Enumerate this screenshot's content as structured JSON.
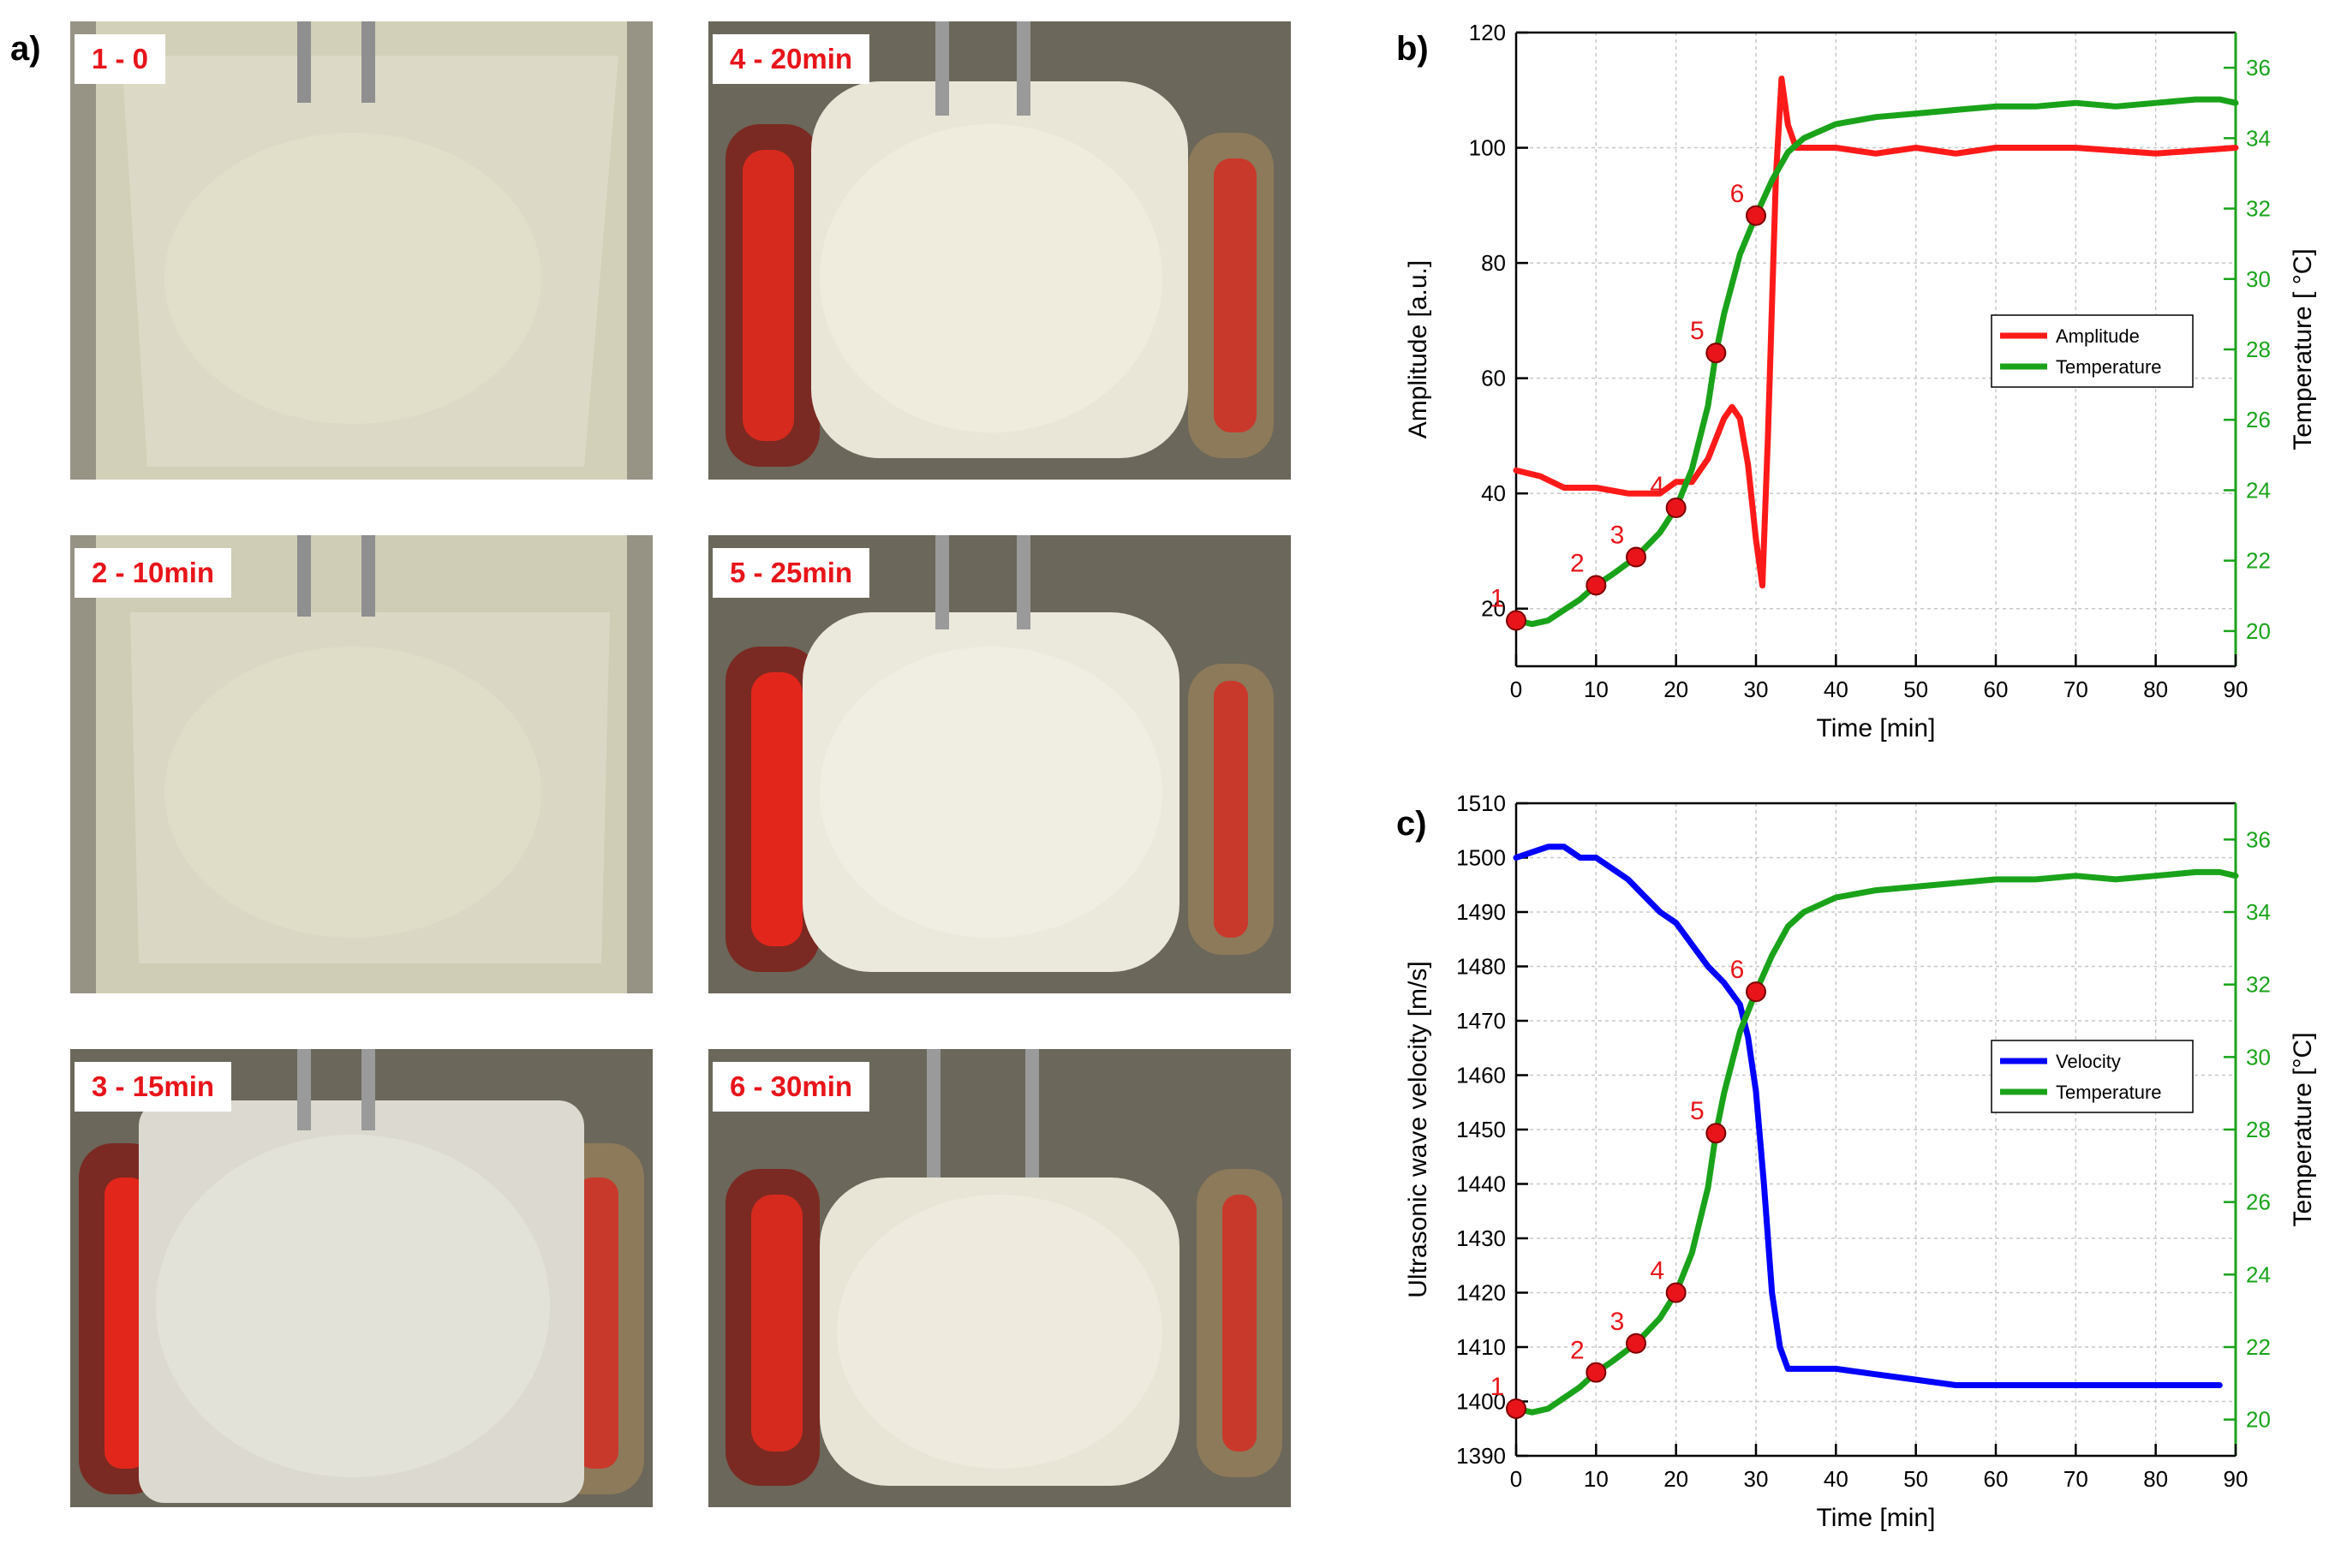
{
  "panel_letters": {
    "a": "a)",
    "b": "b)",
    "c": "c)"
  },
  "photos": [
    {
      "label": "1 - 0",
      "state": "frozen"
    },
    {
      "label": "4 - 20min",
      "state": "thawing"
    },
    {
      "label": "2 - 10min",
      "state": "frozen"
    },
    {
      "label": "5 - 25min",
      "state": "thawing"
    },
    {
      "label": "3 - 15min",
      "state": "frozen-wide"
    },
    {
      "label": "6 - 30min",
      "state": "thawing"
    }
  ],
  "colors": {
    "amplitude": "#ff1a1a",
    "velocity": "#0000ff",
    "temperature": "#1aa31a",
    "marker": "#e8141a",
    "photo_label_text": "#e8141a"
  },
  "chart_data": [
    {
      "id": "b",
      "type": "line",
      "xlabel": "Time [min]",
      "ylabel": "Amplitude [a.u.]",
      "y2label": "Temperature [ °C]",
      "xlim": [
        0,
        90
      ],
      "xticks": [
        0,
        10,
        20,
        30,
        40,
        50,
        60,
        70,
        80,
        90
      ],
      "ylim": [
        10,
        120
      ],
      "yticks": [
        20,
        40,
        60,
        80,
        100,
        120
      ],
      "y2lim": [
        19,
        37
      ],
      "y2ticks": [
        20,
        22,
        24,
        26,
        28,
        30,
        32,
        34,
        36
      ],
      "legend_position": "center-right",
      "series": [
        {
          "name": "Amplitude",
          "axis": "left",
          "color": "#ff1a1a",
          "x": [
            0,
            3,
            6,
            10,
            14,
            18,
            20,
            22,
            24,
            26,
            27,
            28,
            29,
            30,
            30.8,
            31.5,
            32.5,
            33.2,
            34,
            35,
            36,
            40,
            45,
            50,
            55,
            60,
            70,
            80,
            90
          ],
          "y": [
            44,
            43,
            41,
            41,
            40,
            40,
            42,
            42,
            46,
            53,
            55,
            53,
            45,
            32,
            24,
            50,
            95,
            112,
            104,
            100,
            100,
            100,
            99,
            100,
            99,
            100,
            100,
            99,
            100
          ]
        },
        {
          "name": "Temperature",
          "axis": "right",
          "color": "#1aa31a",
          "x": [
            0,
            2,
            4,
            6,
            8,
            10,
            12,
            15,
            18,
            20,
            22,
            24,
            25,
            26,
            28,
            30,
            32,
            34,
            36,
            38,
            40,
            45,
            50,
            55,
            60,
            65,
            70,
            75,
            80,
            85,
            88,
            90
          ],
          "y": [
            20.3,
            20.2,
            20.3,
            20.6,
            20.9,
            21.3,
            21.6,
            22.1,
            22.8,
            23.5,
            24.6,
            26.4,
            27.9,
            29.0,
            30.7,
            31.8,
            32.8,
            33.6,
            34.0,
            34.2,
            34.4,
            34.6,
            34.7,
            34.8,
            34.9,
            34.9,
            35.0,
            34.9,
            35.0,
            35.1,
            35.1,
            35.0
          ]
        }
      ],
      "markers": [
        {
          "label": "1",
          "x": 0,
          "y": 20.3
        },
        {
          "label": "2",
          "x": 10,
          "y": 21.3
        },
        {
          "label": "3",
          "x": 15,
          "y": 22.1
        },
        {
          "label": "4",
          "x": 20,
          "y": 23.5
        },
        {
          "label": "5",
          "x": 25,
          "y": 27.9
        },
        {
          "label": "6",
          "x": 30,
          "y": 31.8
        }
      ]
    },
    {
      "id": "c",
      "type": "line",
      "xlabel": "Time [min]",
      "ylabel": "Ultrasonic wave velocity [m/s]",
      "y2label": "Temperature [°C]",
      "xlim": [
        0,
        90
      ],
      "xticks": [
        0,
        10,
        20,
        30,
        40,
        50,
        60,
        70,
        80,
        90
      ],
      "ylim": [
        1390,
        1510
      ],
      "yticks": [
        1390,
        1400,
        1410,
        1420,
        1430,
        1440,
        1450,
        1460,
        1470,
        1480,
        1490,
        1500,
        1510
      ],
      "y2lim": [
        19,
        37
      ],
      "y2ticks": [
        20,
        22,
        24,
        26,
        28,
        30,
        32,
        34,
        36
      ],
      "legend_position": "center-right",
      "series": [
        {
          "name": "Velocity",
          "axis": "left",
          "color": "#0000ff",
          "x": [
            0,
            2,
            4,
            6,
            8,
            10,
            12,
            14,
            16,
            18,
            20,
            22,
            24,
            26,
            28,
            29,
            30,
            31,
            32,
            33,
            34,
            40,
            45,
            50,
            55,
            60,
            70,
            80,
            88
          ],
          "y": [
            1500,
            1501,
            1502,
            1502,
            1500,
            1500,
            1498,
            1496,
            1493,
            1490,
            1488,
            1484,
            1480,
            1477,
            1473,
            1467,
            1457,
            1440,
            1420,
            1410,
            1406,
            1406,
            1405,
            1404,
            1403,
            1403,
            1403,
            1403,
            1403
          ]
        },
        {
          "name": "Temperature",
          "axis": "right",
          "color": "#1aa31a",
          "x": [
            0,
            2,
            4,
            6,
            8,
            10,
            12,
            15,
            18,
            20,
            22,
            24,
            25,
            26,
            28,
            30,
            32,
            34,
            36,
            38,
            40,
            45,
            50,
            55,
            60,
            65,
            70,
            75,
            80,
            85,
            88,
            90
          ],
          "y": [
            20.3,
            20.2,
            20.3,
            20.6,
            20.9,
            21.3,
            21.6,
            22.1,
            22.8,
            23.5,
            24.6,
            26.4,
            27.9,
            29.0,
            30.7,
            31.8,
            32.8,
            33.6,
            34.0,
            34.2,
            34.4,
            34.6,
            34.7,
            34.8,
            34.9,
            34.9,
            35.0,
            34.9,
            35.0,
            35.1,
            35.1,
            35.0
          ]
        }
      ],
      "markers": [
        {
          "label": "1",
          "x": 0,
          "y": 20.3
        },
        {
          "label": "2",
          "x": 10,
          "y": 21.3
        },
        {
          "label": "3",
          "x": 15,
          "y": 22.1
        },
        {
          "label": "4",
          "x": 20,
          "y": 23.5
        },
        {
          "label": "5",
          "x": 25,
          "y": 27.9
        },
        {
          "label": "6",
          "x": 30,
          "y": 31.8
        }
      ]
    }
  ]
}
